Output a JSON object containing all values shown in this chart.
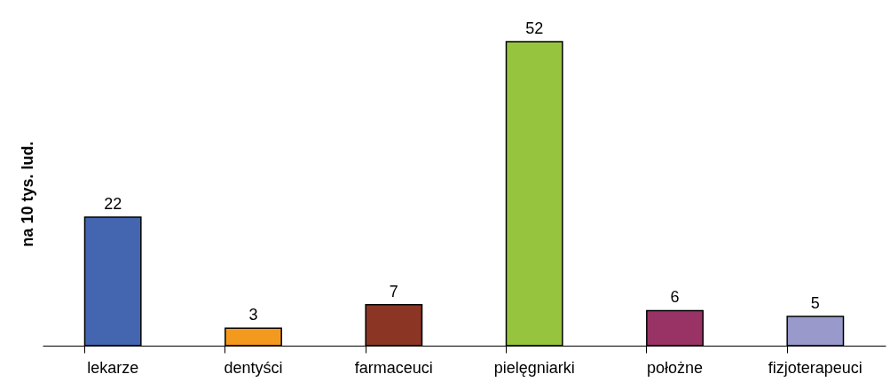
{
  "chart_data": {
    "type": "bar",
    "ylabel": "na 10 tys. lud.",
    "categories": [
      "lekarze",
      "dentyści",
      "farmaceuci",
      "pielęgniarki",
      "położne",
      "fizjoterapeuci"
    ],
    "values": [
      22,
      3,
      7,
      52,
      6,
      5
    ],
    "colors": [
      "#4466b0",
      "#f39a1e",
      "#8b3524",
      "#97c43e",
      "#993366",
      "#9999cc"
    ],
    "relative": false,
    "data_labels": true,
    "grid": false
  }
}
